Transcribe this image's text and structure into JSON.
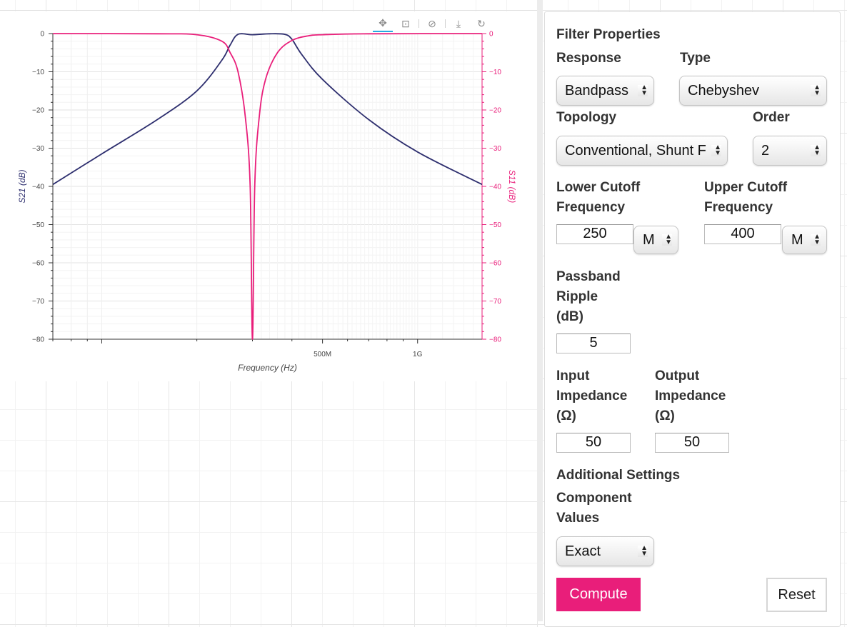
{
  "toolbar": {
    "icons": [
      "pan-icon",
      "box-zoom-icon",
      "wheel-zoom-icon",
      "save-icon",
      "reset-icon"
    ]
  },
  "chart_data": {
    "type": "line",
    "title": "",
    "xlabel": "Frequency (Hz)",
    "ylabel": "S21 (dB)",
    "ylabel_right": "S11 (dB)",
    "x_scale": "log",
    "x_tick_labels": [
      "500M",
      "1G"
    ],
    "xlim": [
      70000000,
      1600000000
    ],
    "ylim": [
      -80,
      0
    ],
    "y_ticks": [
      0,
      -10,
      -20,
      -30,
      -40,
      -50,
      -60,
      -70,
      -80
    ],
    "grid": true,
    "series": [
      {
        "name": "S21",
        "color": "#2d2e6e",
        "x": [
          70000000,
          100000000,
          150000000,
          200000000,
          240000000,
          255000000,
          270000000,
          300000000,
          340000000,
          380000000,
          400000000,
          430000000,
          500000000,
          700000000,
          1000000000,
          1600000000
        ],
        "values": [
          -39.5,
          -31.5,
          -22.5,
          -15,
          -7,
          -3,
          -0.2,
          -0.3,
          -0.05,
          -0.2,
          -1.5,
          -5.5,
          -12,
          -22.5,
          -31,
          -39.5
        ]
      },
      {
        "name": "S11",
        "color": "#e91e7a",
        "x": [
          70000000,
          150000000,
          200000000,
          240000000,
          255000000,
          270000000,
          285000000,
          295000000,
          300000000,
          305000000,
          315000000,
          330000000,
          360000000,
          400000000,
          450000000,
          500000000,
          700000000,
          1600000000
        ],
        "values": [
          -0.01,
          -0.05,
          -0.3,
          -2,
          -5,
          -10,
          -22,
          -40,
          -80,
          -40,
          -22,
          -12,
          -5,
          -1.8,
          -0.6,
          -0.3,
          -0.05,
          -0.01
        ]
      }
    ]
  },
  "panel": {
    "title": "Filter Properties",
    "response_label": "Response",
    "response_value": "Bandpass",
    "type_label": "Type",
    "type_value": "Chebyshev",
    "topology_label": "Topology",
    "topology_value": "Conventional, Shunt F",
    "order_label": "Order",
    "order_value": "2",
    "lower_cutoff_label_1": "Lower Cutoff",
    "lower_cutoff_label_2": "Frequency",
    "lower_cutoff_value": "250",
    "lower_cutoff_unit": "M",
    "upper_cutoff_label_1": "Upper Cutoff",
    "upper_cutoff_label_2": "Frequency",
    "upper_cutoff_value": "400",
    "upper_cutoff_unit": "M",
    "ripple_label_1": "Passband",
    "ripple_label_2": "Ripple",
    "ripple_label_3": "(dB)",
    "ripple_value": "5",
    "input_imp_label_1": "Input",
    "input_imp_label_2": "Impedance",
    "input_imp_label_3": "(Ω)",
    "input_imp_value": "50",
    "output_imp_label_1": "Output",
    "output_imp_label_2": "Impedance",
    "output_imp_label_3": "(Ω)",
    "output_imp_value": "50",
    "additional_label": "Additional Settings",
    "component_label_1": "Component",
    "component_label_2": "Values",
    "component_value": "Exact",
    "compute_label": "Compute",
    "reset_label": "Reset"
  }
}
